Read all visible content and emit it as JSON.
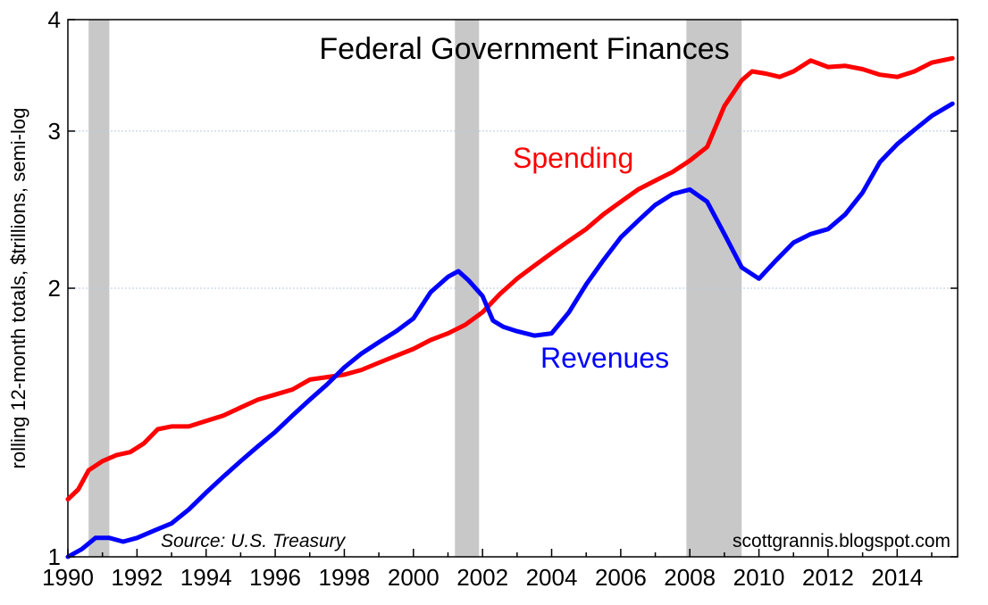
{
  "chart_data": {
    "type": "line",
    "title": "Federal Government Finances",
    "ylabel": "rolling 12-month totals, $trillions, semi-log",
    "xlabel": "",
    "yscale": "log",
    "xlim": [
      1990,
      2015.75
    ],
    "ylim": [
      1,
      4
    ],
    "y_ticks": [
      1,
      2,
      3,
      4
    ],
    "x_ticks": [
      1990,
      1992,
      1994,
      1996,
      1998,
      2000,
      2002,
      2004,
      2006,
      2008,
      2010,
      2012,
      2014
    ],
    "grid": "horizontal dotted",
    "legend": "inline labels",
    "recessions": [
      [
        1990.6,
        1991.2
      ],
      [
        2001.2,
        2001.9
      ],
      [
        2007.9,
        2009.5
      ]
    ],
    "source": "Source: U.S. Treasury",
    "credit": "scottgrannis.blogspot.com",
    "series": [
      {
        "name": "Spending",
        "color": "#ff0000",
        "points": [
          [
            1990.0,
            1.16
          ],
          [
            1990.3,
            1.19
          ],
          [
            1990.6,
            1.25
          ],
          [
            1991.0,
            1.28
          ],
          [
            1991.4,
            1.3
          ],
          [
            1991.8,
            1.31
          ],
          [
            1992.2,
            1.34
          ],
          [
            1992.6,
            1.39
          ],
          [
            1993.0,
            1.4
          ],
          [
            1993.5,
            1.4
          ],
          [
            1994.0,
            1.42
          ],
          [
            1994.5,
            1.44
          ],
          [
            1995.0,
            1.47
          ],
          [
            1995.5,
            1.5
          ],
          [
            1996.0,
            1.52
          ],
          [
            1996.5,
            1.54
          ],
          [
            1997.0,
            1.58
          ],
          [
            1997.5,
            1.59
          ],
          [
            1998.0,
            1.6
          ],
          [
            1998.5,
            1.62
          ],
          [
            1999.0,
            1.65
          ],
          [
            1999.5,
            1.68
          ],
          [
            2000.0,
            1.71
          ],
          [
            2000.5,
            1.75
          ],
          [
            2001.0,
            1.78
          ],
          [
            2001.5,
            1.82
          ],
          [
            2002.0,
            1.88
          ],
          [
            2002.5,
            1.97
          ],
          [
            2003.0,
            2.05
          ],
          [
            2003.5,
            2.12
          ],
          [
            2004.0,
            2.19
          ],
          [
            2004.5,
            2.26
          ],
          [
            2005.0,
            2.33
          ],
          [
            2005.5,
            2.42
          ],
          [
            2006.0,
            2.5
          ],
          [
            2006.5,
            2.58
          ],
          [
            2007.0,
            2.64
          ],
          [
            2007.5,
            2.7
          ],
          [
            2008.0,
            2.78
          ],
          [
            2008.5,
            2.88
          ],
          [
            2009.0,
            3.2
          ],
          [
            2009.5,
            3.42
          ],
          [
            2009.8,
            3.5
          ],
          [
            2010.2,
            3.48
          ],
          [
            2010.6,
            3.45
          ],
          [
            2011.0,
            3.5
          ],
          [
            2011.5,
            3.6
          ],
          [
            2012.0,
            3.54
          ],
          [
            2012.5,
            3.55
          ],
          [
            2013.0,
            3.52
          ],
          [
            2013.5,
            3.47
          ],
          [
            2014.0,
            3.45
          ],
          [
            2014.5,
            3.5
          ],
          [
            2015.0,
            3.58
          ],
          [
            2015.6,
            3.62
          ]
        ]
      },
      {
        "name": "Revenues",
        "color": "#0000ff",
        "points": [
          [
            1990.0,
            1.0
          ],
          [
            1990.4,
            1.02
          ],
          [
            1990.8,
            1.05
          ],
          [
            1991.2,
            1.05
          ],
          [
            1991.6,
            1.04
          ],
          [
            1992.0,
            1.05
          ],
          [
            1992.5,
            1.07
          ],
          [
            1993.0,
            1.09
          ],
          [
            1993.5,
            1.13
          ],
          [
            1994.0,
            1.18
          ],
          [
            1994.5,
            1.23
          ],
          [
            1995.0,
            1.28
          ],
          [
            1995.5,
            1.33
          ],
          [
            1996.0,
            1.38
          ],
          [
            1996.5,
            1.44
          ],
          [
            1997.0,
            1.5
          ],
          [
            1997.5,
            1.56
          ],
          [
            1998.0,
            1.63
          ],
          [
            1998.5,
            1.69
          ],
          [
            1999.0,
            1.74
          ],
          [
            1999.5,
            1.79
          ],
          [
            2000.0,
            1.85
          ],
          [
            2000.5,
            1.98
          ],
          [
            2001.0,
            2.06
          ],
          [
            2001.3,
            2.09
          ],
          [
            2001.6,
            2.04
          ],
          [
            2002.0,
            1.96
          ],
          [
            2002.3,
            1.84
          ],
          [
            2002.6,
            1.81
          ],
          [
            2003.0,
            1.79
          ],
          [
            2003.5,
            1.77
          ],
          [
            2004.0,
            1.78
          ],
          [
            2004.5,
            1.88
          ],
          [
            2005.0,
            2.02
          ],
          [
            2005.5,
            2.15
          ],
          [
            2006.0,
            2.28
          ],
          [
            2006.5,
            2.38
          ],
          [
            2007.0,
            2.48
          ],
          [
            2007.5,
            2.55
          ],
          [
            2008.0,
            2.58
          ],
          [
            2008.5,
            2.5
          ],
          [
            2009.0,
            2.3
          ],
          [
            2009.5,
            2.11
          ],
          [
            2010.0,
            2.05
          ],
          [
            2010.5,
            2.15
          ],
          [
            2011.0,
            2.25
          ],
          [
            2011.5,
            2.3
          ],
          [
            2012.0,
            2.33
          ],
          [
            2012.5,
            2.42
          ],
          [
            2013.0,
            2.56
          ],
          [
            2013.5,
            2.77
          ],
          [
            2014.0,
            2.9
          ],
          [
            2014.5,
            3.01
          ],
          [
            2015.0,
            3.12
          ],
          [
            2015.6,
            3.22
          ]
        ]
      }
    ]
  }
}
